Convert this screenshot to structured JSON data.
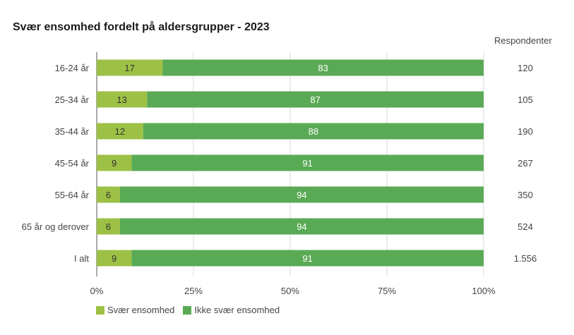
{
  "chart_data": {
    "type": "bar",
    "stacked": true,
    "orientation": "horizontal",
    "title": "Svær ensomhed fordelt på aldersgrupper - 2023",
    "categories": [
      "16-24 år",
      "25-34 år",
      "35-44 år",
      "45-54 år",
      "55-64 år",
      "65 år og derover",
      "I alt"
    ],
    "series": [
      {
        "name": "Svær ensomhed",
        "values": [
          17,
          13,
          12,
          9,
          6,
          6,
          9
        ],
        "color": "#9dc145",
        "label_color": "#333333"
      },
      {
        "name": "Ikke svær ensomhed",
        "values": [
          83,
          87,
          88,
          91,
          94,
          94,
          91
        ],
        "color": "#5aaa55",
        "label_color": "#ffffff"
      }
    ],
    "respondents_header": "Respondenter",
    "respondents": [
      "120",
      "105",
      "190",
      "267",
      "350",
      "524",
      "1.556"
    ],
    "xlim": [
      0,
      100
    ],
    "xticks": [
      0,
      25,
      50,
      75,
      100
    ],
    "xtick_labels": [
      "0%",
      "25%",
      "50%",
      "75%",
      "100%"
    ],
    "grid": true,
    "legend_position": "bottom-left"
  }
}
